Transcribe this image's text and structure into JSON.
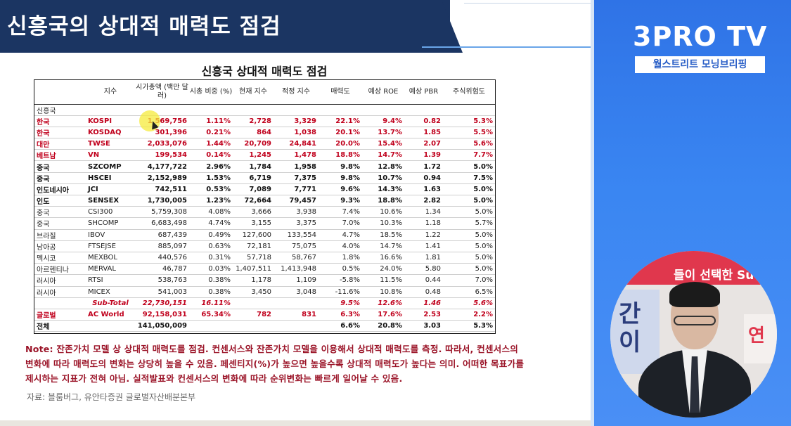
{
  "header": {
    "title": "신흥국의 상대적 매력도 점검"
  },
  "brand": {
    "logo": "3PRO TV",
    "subtitle": "월스트리트 모닝브리핑",
    "accent": "#2f73e6"
  },
  "camera": {
    "banner_text": "들이 선택한 Su",
    "left_sign": "간\n이",
    "right_sign": "연"
  },
  "table": {
    "title": "신흥국 상대적 매력도 점검",
    "headers": [
      "",
      "지수",
      "시가총액 (백만 달러)",
      "시총 비중 (%)",
      "현재 지수",
      "적정 지수",
      "매력도",
      "예상 ROE",
      "예상 PBR",
      "주식위험도"
    ],
    "group_label": "신흥국",
    "rows": [
      {
        "style": "red",
        "cells": [
          "한국",
          "KOSPI",
          "1,569,756",
          "1.11%",
          "2,728",
          "3,329",
          "22.1%",
          "9.4%",
          "0.82",
          "5.3%"
        ]
      },
      {
        "style": "red",
        "cells": [
          "한국",
          "KOSDAQ",
          "301,396",
          "0.21%",
          "864",
          "1,038",
          "20.1%",
          "13.7%",
          "1.85",
          "5.5%"
        ]
      },
      {
        "style": "red",
        "cells": [
          "대만",
          "TWSE",
          "2,033,076",
          "1.44%",
          "20,709",
          "24,841",
          "20.0%",
          "15.4%",
          "2.07",
          "5.6%"
        ]
      },
      {
        "style": "red",
        "cells": [
          "베트남",
          "VN",
          "199,534",
          "0.14%",
          "1,245",
          "1,478",
          "18.8%",
          "14.7%",
          "1.39",
          "7.7%"
        ]
      },
      {
        "style": "bold",
        "cells": [
          "중국",
          "SZCOMP",
          "4,177,722",
          "2.96%",
          "1,784",
          "1,958",
          "9.8%",
          "12.8%",
          "1.72",
          "5.0%"
        ]
      },
      {
        "style": "bold",
        "cells": [
          "중국",
          "HSCEI",
          "2,152,989",
          "1.53%",
          "6,719",
          "7,375",
          "9.8%",
          "10.7%",
          "0.94",
          "7.5%"
        ]
      },
      {
        "style": "bold",
        "cells": [
          "인도네시아",
          "JCI",
          "742,511",
          "0.53%",
          "7,089",
          "7,771",
          "9.6%",
          "14.3%",
          "1.63",
          "5.0%"
        ]
      },
      {
        "style": "bold",
        "cells": [
          "인도",
          "SENSEX",
          "1,730,005",
          "1.23%",
          "72,664",
          "79,457",
          "9.3%",
          "18.8%",
          "2.82",
          "5.0%"
        ]
      },
      {
        "style": "plain",
        "cells": [
          "중국",
          "CSI300",
          "5,759,308",
          "4.08%",
          "3,666",
          "3,938",
          "7.4%",
          "10.6%",
          "1.34",
          "5.0%"
        ]
      },
      {
        "style": "plain",
        "cells": [
          "중국",
          "SHCOMP",
          "6,683,498",
          "4.74%",
          "3,155",
          "3,375",
          "7.0%",
          "10.3%",
          "1.18",
          "5.7%"
        ]
      },
      {
        "style": "plain",
        "cells": [
          "브라질",
          "IBOV",
          "687,439",
          "0.49%",
          "127,600",
          "133,554",
          "4.7%",
          "18.5%",
          "1.22",
          "5.0%"
        ]
      },
      {
        "style": "plain",
        "cells": [
          "남아공",
          "FTSEJSE",
          "885,097",
          "0.63%",
          "72,181",
          "75,075",
          "4.0%",
          "14.7%",
          "1.41",
          "5.0%"
        ]
      },
      {
        "style": "plain",
        "cells": [
          "멕시코",
          "MEXBOL",
          "440,576",
          "0.31%",
          "57,718",
          "58,767",
          "1.8%",
          "16.6%",
          "1.81",
          "5.0%"
        ]
      },
      {
        "style": "plain",
        "cells": [
          "아르헨티나",
          "MERVAL",
          "46,787",
          "0.03%",
          "1,407,511",
          "1,413,948",
          "0.5%",
          "24.0%",
          "5.80",
          "5.0%"
        ]
      },
      {
        "style": "plain",
        "cells": [
          "러시아",
          "RTSI",
          "538,763",
          "0.38%",
          "1,178",
          "1,109",
          "-5.8%",
          "11.5%",
          "0.44",
          "7.0%"
        ]
      },
      {
        "style": "plain",
        "cells": [
          "러시아",
          "MICEX",
          "541,003",
          "0.38%",
          "3,450",
          "3,048",
          "-11.6%",
          "10.8%",
          "0.48",
          "6.5%"
        ]
      },
      {
        "style": "subtotal",
        "cells": [
          "",
          "Sub-Total",
          "22,730,151",
          "16.11%",
          "",
          "",
          "9.5%",
          "12.6%",
          "1.46",
          "5.6%"
        ]
      },
      {
        "style": "world",
        "cells": [
          "글로벌",
          "AC World",
          "92,158,031",
          "65.34%",
          "782",
          "831",
          "6.3%",
          "17.6%",
          "2.53",
          "2.2%"
        ]
      },
      {
        "style": "total",
        "cells": [
          "전체",
          "",
          "141,050,009",
          "",
          "",
          "",
          "6.6%",
          "20.8%",
          "3.03",
          "5.3%"
        ]
      }
    ]
  },
  "note": "Note: 잔존가치 모델 상 상대적 매력도를 점검. 컨센서스와 잔존가치 모델을 이용해서 상대적 매력도를 측정. 따라서, 컨센서스의 변화에 따라 매력도의 변화는 상당히 높을 수 있음. 페센티지(%)가 높으면 높을수록 상대적 매력도가 높다는 의미. 어떠한 목표가를 제시하는 지표가 전혀 아님. 실적발표와 컨센서스의 변화에 따라 순위변화는 빠르게 일어날 수 있음.",
  "source": "자료: 블룸버그, 유안타증권 글로벌자산배분본부"
}
